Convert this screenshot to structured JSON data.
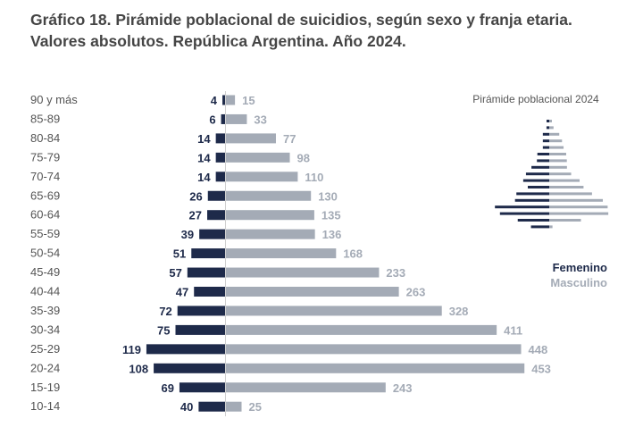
{
  "title": {
    "line1": "Gráfico 18. Pirámide poblacional de suicidios, según sexo y franja etaria.",
    "line2": "Valores absolutos. República Argentina. Año 2024."
  },
  "colors": {
    "femenino": "#1e2a4a",
    "masculino": "#a4abb6",
    "age_label": "#555555"
  },
  "chart_data": {
    "type": "bar",
    "orientation": "horizontal-pyramid",
    "categories": [
      "90 y más",
      "85-89",
      "80-84",
      "75-79",
      "70-74",
      "65-69",
      "60-64",
      "55-59",
      "50-54",
      "45-49",
      "40-44",
      "35-39",
      "30-34",
      "25-29",
      "20-24",
      "15-19",
      "10-14"
    ],
    "series": [
      {
        "name": "Femenino",
        "values": [
          4,
          6,
          14,
          14,
          14,
          26,
          27,
          39,
          51,
          57,
          47,
          72,
          75,
          119,
          108,
          69,
          40
        ]
      },
      {
        "name": "Masculino",
        "values": [
          15,
          33,
          77,
          98,
          110,
          130,
          135,
          136,
          168,
          233,
          263,
          328,
          411,
          448,
          453,
          243,
          25
        ]
      }
    ],
    "legend_position": "right",
    "grid": false
  },
  "inset": {
    "title": "Pirámide poblacional 2024"
  },
  "legend": {
    "femenino": "Femenino",
    "masculino": "Masculino"
  }
}
